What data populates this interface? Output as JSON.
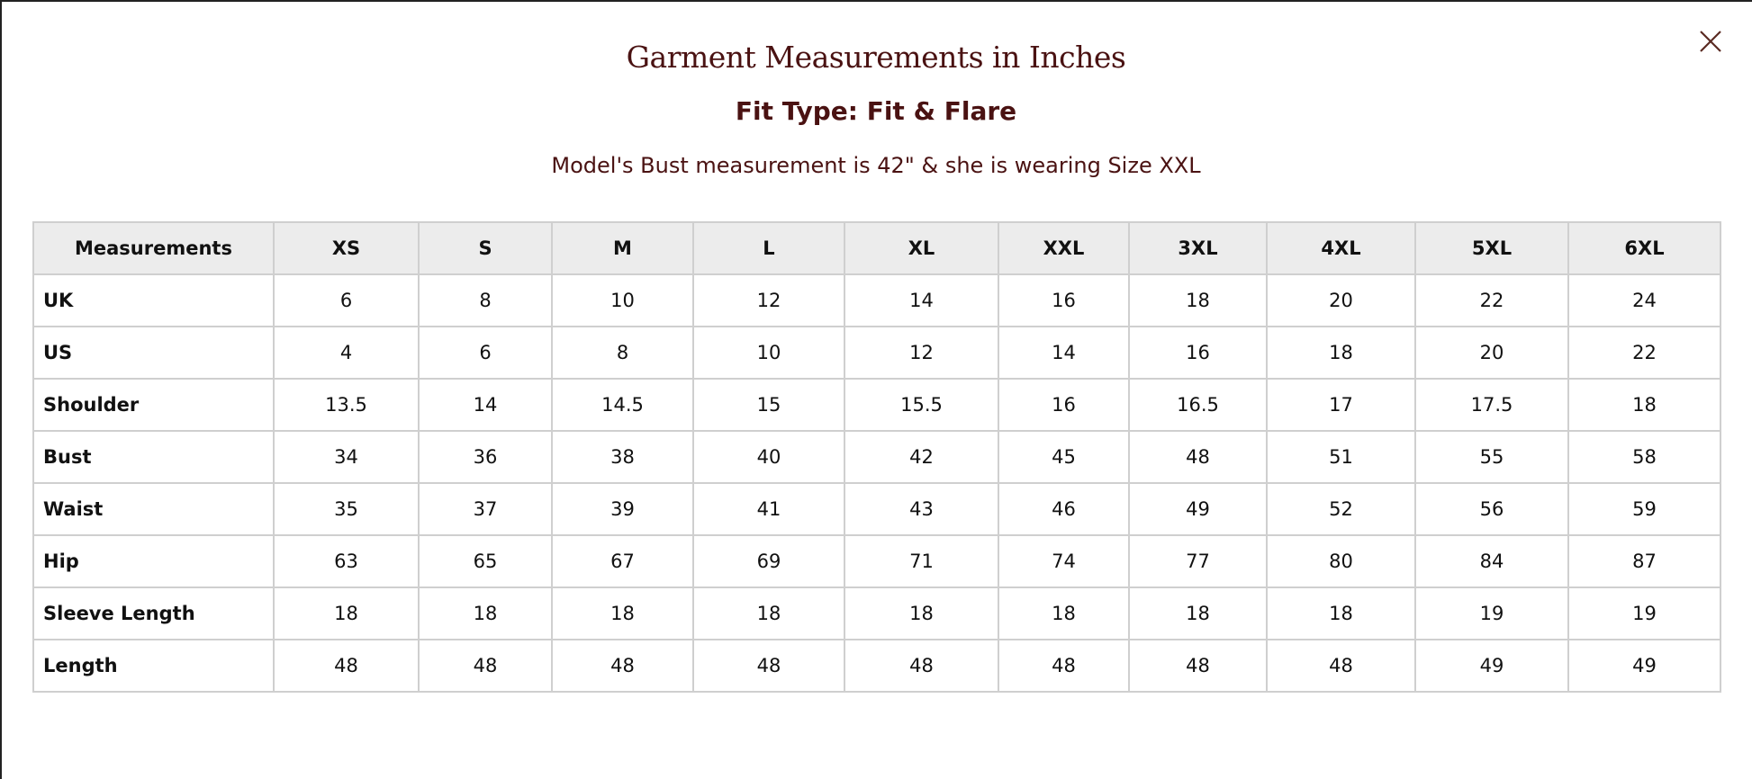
{
  "title": "Garment Measurements in Inches",
  "fit_type": "Fit Type: Fit & Flare",
  "model_note": "Model's Bust measurement is 42\" & she is wearing Size XXL",
  "close_icon": "close-icon",
  "colors": {
    "heading": "#4a1212",
    "header_bg": "#ececec",
    "border": "#cfcfcf"
  },
  "table": {
    "headers": [
      "Measurements",
      "XS",
      "S",
      "M",
      "L",
      "XL",
      "XXL",
      "3XL",
      "4XL",
      "5XL",
      "6XL"
    ],
    "rows": [
      [
        "UK",
        "6",
        "8",
        "10",
        "12",
        "14",
        "16",
        "18",
        "20",
        "22",
        "24"
      ],
      [
        "US",
        "4",
        "6",
        "8",
        "10",
        "12",
        "14",
        "16",
        "18",
        "20",
        "22"
      ],
      [
        "Shoulder",
        "13.5",
        "14",
        "14.5",
        "15",
        "15.5",
        "16",
        "16.5",
        "17",
        "17.5",
        "18"
      ],
      [
        "Bust",
        "34",
        "36",
        "38",
        "40",
        "42",
        "45",
        "48",
        "51",
        "55",
        "58"
      ],
      [
        "Waist",
        "35",
        "37",
        "39",
        "41",
        "43",
        "46",
        "49",
        "52",
        "56",
        "59"
      ],
      [
        "Hip",
        "63",
        "65",
        "67",
        "69",
        "71",
        "74",
        "77",
        "80",
        "84",
        "87"
      ],
      [
        "Sleeve Length",
        "18",
        "18",
        "18",
        "18",
        "18",
        "18",
        "18",
        "18",
        "19",
        "19"
      ],
      [
        "Length",
        "48",
        "48",
        "48",
        "48",
        "48",
        "48",
        "48",
        "48",
        "49",
        "49"
      ]
    ]
  }
}
